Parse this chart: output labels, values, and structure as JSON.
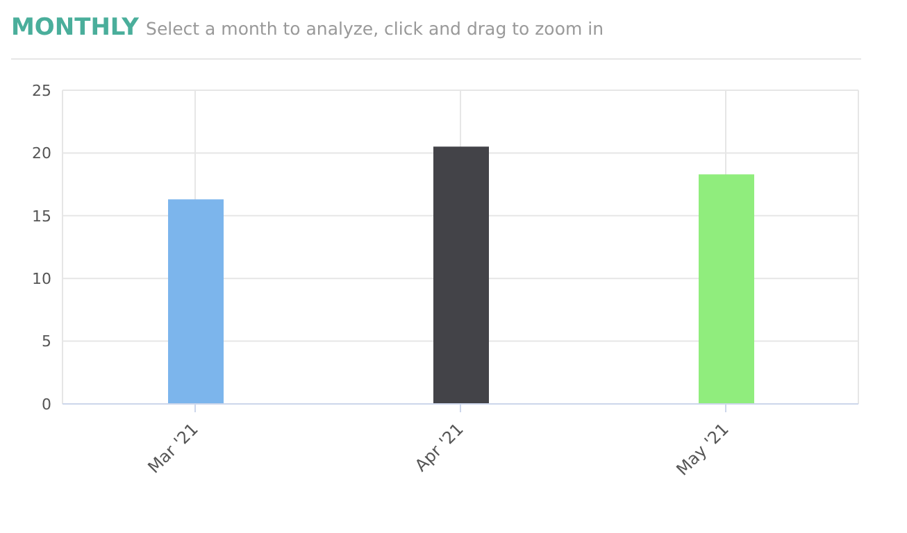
{
  "chart_data": {
    "type": "bar",
    "title": "MONTHLY",
    "subtitle": "Select a month to analyze, click and drag to zoom in",
    "categories": [
      "Mar '21",
      "Apr '21",
      "May '21"
    ],
    "values": [
      16.3,
      20.5,
      18.3
    ],
    "colors": [
      "#7cb5ec",
      "#434348",
      "#90ed7d"
    ],
    "ylim": [
      0,
      25
    ],
    "yticks": [
      0,
      5,
      10,
      15,
      20,
      25
    ],
    "grid": true
  }
}
